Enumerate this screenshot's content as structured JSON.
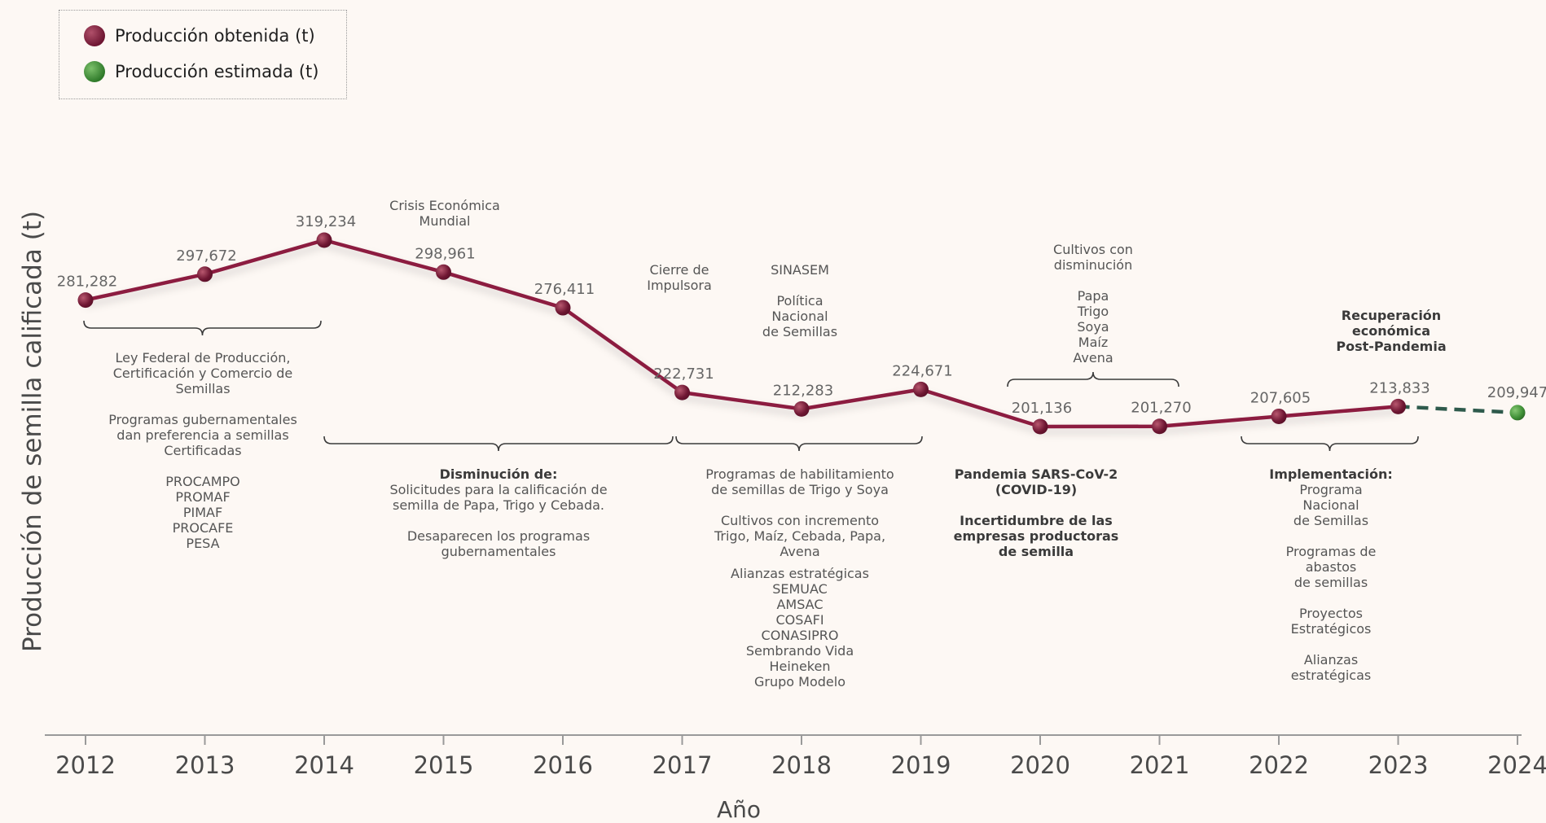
{
  "legend": {
    "obtained": "Producción obtenida (t)",
    "estimated": "Producción estimada (t)"
  },
  "colors": {
    "obtained_line": "#8c1d40",
    "estimated_line": "#2e5a4c",
    "obtained_dot": "#6e1632",
    "estimated_dot": "#3f8f36"
  },
  "chart_data": {
    "type": "line",
    "xlabel": "Año",
    "ylabel": "Producción de semilla calificada (t)",
    "categories": [
      "2012",
      "2013",
      "2014",
      "2015",
      "2016",
      "2017",
      "2018",
      "2019",
      "2020",
      "2021",
      "2022",
      "2023",
      "2024"
    ],
    "series": [
      {
        "name": "Producción obtenida (t)",
        "style": "solid",
        "x": [
          "2012",
          "2013",
          "2014",
          "2015",
          "2016",
          "2017",
          "2018",
          "2019",
          "2020",
          "2021",
          "2022",
          "2023"
        ],
        "values": [
          281282,
          297672,
          319234,
          298961,
          276411,
          222731,
          212283,
          224671,
          201136,
          201270,
          207605,
          213833
        ],
        "labels": [
          "281,282",
          "297,672",
          "319,234",
          "298,961",
          "276,411",
          "222,731",
          "212,283",
          "224,671",
          "201,136",
          "201,270",
          "207,605",
          "213,833"
        ]
      },
      {
        "name": "Producción estimada (t)",
        "style": "dashed",
        "x": [
          "2023",
          "2024"
        ],
        "values": [
          213833,
          209947
        ],
        "labels": [
          "",
          "209,947"
        ]
      }
    ]
  },
  "annotations": [
    {
      "id": "crisis",
      "lines": [
        "Crisis Económica",
        "Mundial"
      ]
    },
    {
      "id": "cierre",
      "lines": [
        "Cierre de",
        "Impulsora"
      ]
    },
    {
      "id": "sinasem",
      "lines": [
        "SINASEM",
        "",
        "Política",
        "Nacional",
        "de Semillas"
      ]
    },
    {
      "id": "cultivos-dism",
      "lines": [
        "Cultivos con",
        "disminución",
        "",
        "Papa",
        "Trigo",
        "Soya",
        "Maíz",
        "Avena"
      ]
    },
    {
      "id": "recuperacion",
      "bold": true,
      "lines": [
        "Recuperación",
        "económica",
        "Post-Pandemia"
      ]
    },
    {
      "id": "ley",
      "lines": [
        "Ley Federal de Producción,",
        "Certificación y Comercio de",
        "Semillas",
        "",
        "Programas gubernamentales",
        "dan preferencia a semillas",
        "Certificadas",
        "",
        "PROCAMPO",
        "PROMAF",
        "PIMAF",
        "PROCAFE",
        "PESA"
      ]
    },
    {
      "id": "disminucion",
      "boldFirst": true,
      "lines": [
        "Disminución de:",
        "Solicitudes para la calificación de",
        "semilla de Papa, Trigo y Cebada.",
        "",
        "Desaparecen los programas",
        "gubernamentales"
      ]
    },
    {
      "id": "programas",
      "lines": [
        "Programas de habilitamiento",
        "de semillas de Trigo y Soya",
        "",
        "Cultivos con incremento",
        "Trigo, Maíz, Cebada, Papa,",
        "Avena"
      ]
    },
    {
      "id": "alianzas",
      "lines": [
        "Alianzas estratégicas",
        "SEMUAC",
        "AMSAC",
        "COSAFI",
        "CONASIPRO",
        "Sembrando Vida",
        "Heineken",
        "Grupo Modelo"
      ]
    },
    {
      "id": "pandemia",
      "bold": true,
      "lines": [
        "Pandemia SARS-CoV-2",
        "(COVID-19)",
        "",
        "Incertidumbre de las",
        "empresas productoras",
        "de semilla"
      ]
    },
    {
      "id": "implementacion",
      "boldFirst": true,
      "lines": [
        "Implementación:",
        "Programa",
        "Nacional",
        "de Semillas",
        "",
        "Programas de",
        "abastos",
        "de semillas",
        "",
        "Proyectos",
        "Estratégicos",
        "",
        "Alianzas",
        "estratégicas"
      ]
    }
  ]
}
